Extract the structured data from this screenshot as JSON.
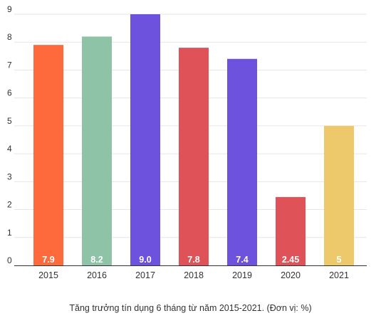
{
  "chart_data": {
    "type": "bar",
    "title": "",
    "xlabel": "",
    "ylabel": "",
    "caption": "Tăng trưởng tín dụng 6 tháng từ năm 2015-2021. (Đơn vị: %)",
    "categories": [
      "2015",
      "2016",
      "2017",
      "2018",
      "2019",
      "2020",
      "2021"
    ],
    "values": [
      7.9,
      8.2,
      9.0,
      7.8,
      7.4,
      2.45,
      5
    ],
    "value_labels": [
      "7.9",
      "8.2",
      "9.0",
      "7.8",
      "7.4",
      "2.45",
      "5"
    ],
    "colors": [
      "#FF6A3D",
      "#8EC3A7",
      "#6C52DC",
      "#DF5358",
      "#6C52DC",
      "#DF5358",
      "#EDC96B"
    ],
    "y_ticks": [
      0,
      1,
      2,
      3,
      4,
      5,
      6,
      7,
      8,
      9
    ],
    "ylim": [
      0,
      9
    ],
    "grid": true,
    "legend": "none"
  }
}
